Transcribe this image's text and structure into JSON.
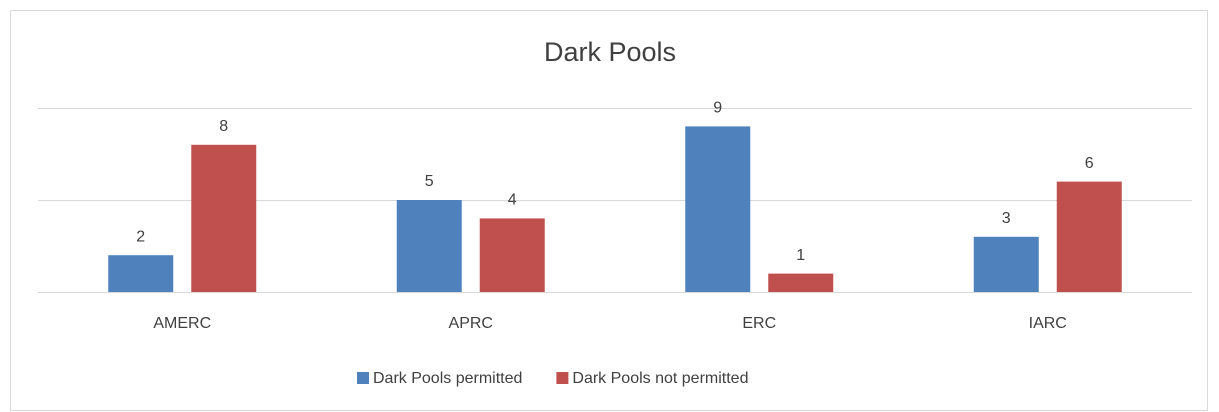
{
  "chart_data": {
    "type": "bar",
    "title": "Dark Pools",
    "categories": [
      "AMERC",
      "APRC",
      "ERC",
      "IARC"
    ],
    "series": [
      {
        "name": "Dark Pools permitted",
        "color": "#4f81bd",
        "values": [
          2,
          5,
          9,
          3
        ]
      },
      {
        "name": "Dark Pools not permitted",
        "color": "#c0504d",
        "values": [
          8,
          4,
          1,
          6
        ]
      }
    ],
    "ylim": [
      0,
      10
    ],
    "yticks": [
      0,
      5,
      10
    ],
    "grid": true,
    "legend": "bottom"
  }
}
